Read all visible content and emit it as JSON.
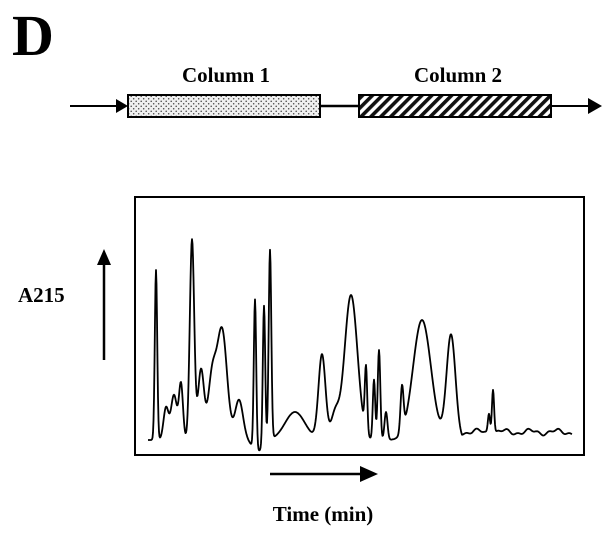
{
  "panel_label": "D",
  "columns": {
    "column1_label": "Column 1",
    "column2_label": "Column 2"
  },
  "chromatogram": {
    "y_label": "A215",
    "x_label": "Time (min)"
  },
  "colors": {
    "ink": "#000000",
    "background": "#ffffff"
  }
}
